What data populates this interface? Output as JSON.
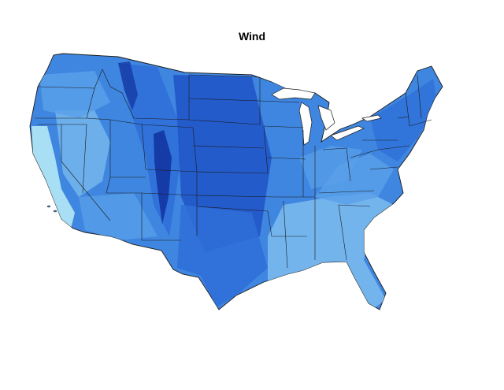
{
  "title": "Wind",
  "colors": {
    "background": "#ffffff",
    "land_base": "#3f86e0",
    "very_low": "#aee4f4",
    "low": "#7cbcee",
    "mid": "#5aa0ea",
    "high": "#2f6fd8",
    "very_high": "#1e50c6",
    "peak": "#11329c",
    "borders": "#1a1a1a"
  }
}
